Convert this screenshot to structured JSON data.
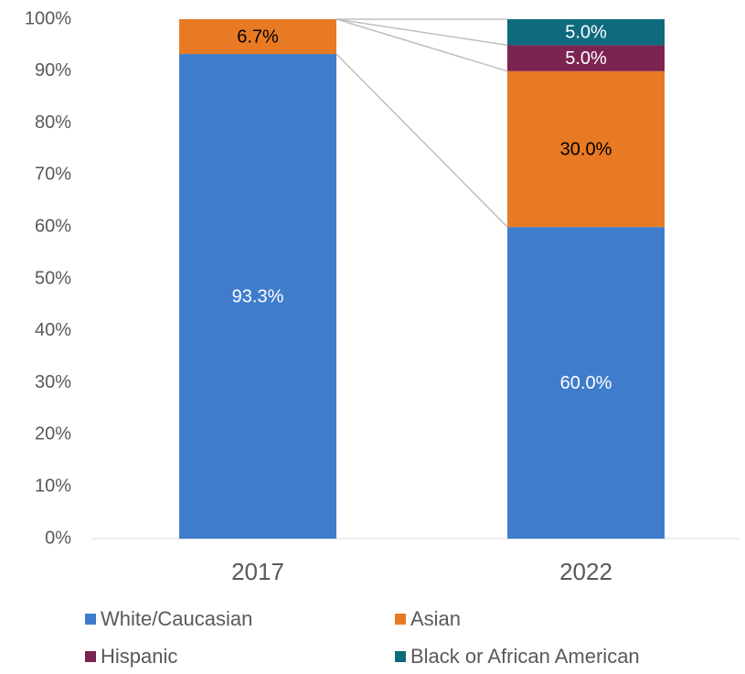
{
  "chart_data": {
    "type": "stacked_bar",
    "categories": [
      "2017",
      "2022"
    ],
    "series": [
      {
        "name": "White/Caucasian",
        "color": "#3f7dcc",
        "values": [
          93.3,
          60.0
        ],
        "value_labels": [
          "93.3%",
          "60.0%"
        ]
      },
      {
        "name": "Asian",
        "color": "#e87a24",
        "values": [
          6.7,
          30.0
        ],
        "value_labels": [
          "6.7%",
          "30.0%"
        ]
      },
      {
        "name": "Hispanic",
        "color": "#7b2451",
        "values": [
          0,
          5.0
        ],
        "value_labels": [
          null,
          "5.0%"
        ]
      },
      {
        "name": "Black or African American",
        "color": "#0e6b7e",
        "values": [
          0,
          5.0
        ],
        "value_labels": [
          null,
          "5.0%"
        ]
      }
    ],
    "ylim": [
      0,
      100
    ],
    "yticks": [
      {
        "value": 0,
        "label": "0%"
      },
      {
        "value": 10,
        "label": "10%"
      },
      {
        "value": 20,
        "label": "20%"
      },
      {
        "value": 30,
        "label": "30%"
      },
      {
        "value": 40,
        "label": "40%"
      },
      {
        "value": 50,
        "label": "50%"
      },
      {
        "value": 60,
        "label": "60%"
      },
      {
        "value": 70,
        "label": "70%"
      },
      {
        "value": 80,
        "label": "80%"
      },
      {
        "value": 90,
        "label": "90%"
      },
      {
        "value": 100,
        "label": "100%"
      }
    ],
    "series_lines": true,
    "legend": "bottom"
  }
}
